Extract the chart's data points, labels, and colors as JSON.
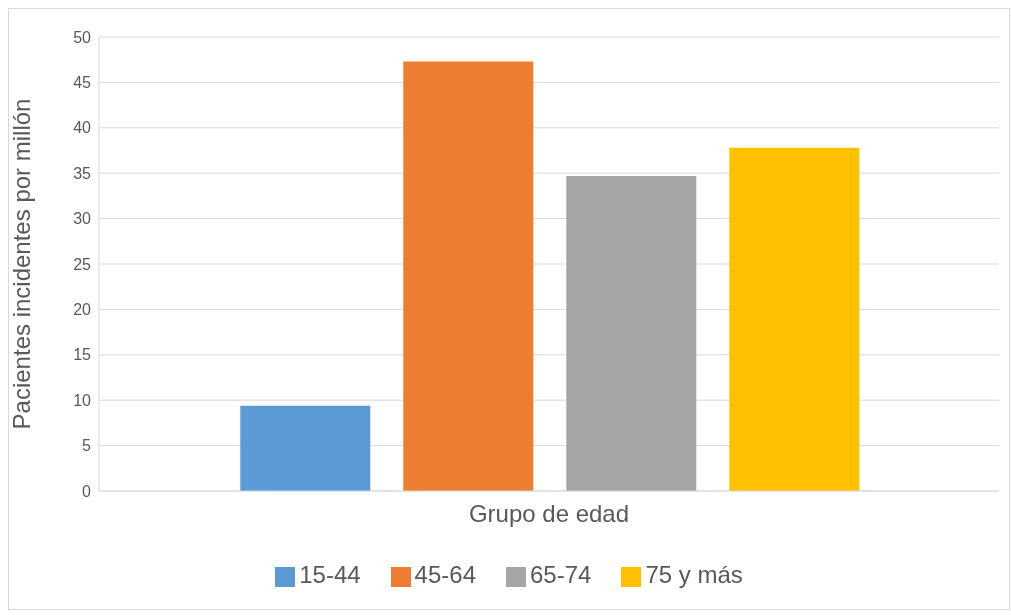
{
  "chart_data": {
    "type": "bar",
    "xlabel": "Grupo de edad",
    "ylabel": "Pacientes incidentes por millón",
    "categories": [
      null
    ],
    "series": [
      {
        "name": "15-44",
        "color": "#5b9bd5",
        "values": [
          9.4
        ]
      },
      {
        "name": "45-64",
        "color": "#ed7d31",
        "values": [
          47.3
        ]
      },
      {
        "name": "65-74",
        "color": "#a5a5a5",
        "values": [
          34.7
        ]
      },
      {
        "name": "75 y más",
        "color": "#ffc000",
        "values": [
          37.8
        ]
      }
    ],
    "ylim": [
      0,
      50
    ],
    "yticks": [
      0,
      5,
      10,
      15,
      20,
      25,
      30,
      35,
      40,
      45,
      50
    ],
    "grid": "y",
    "legend": "bottom"
  }
}
